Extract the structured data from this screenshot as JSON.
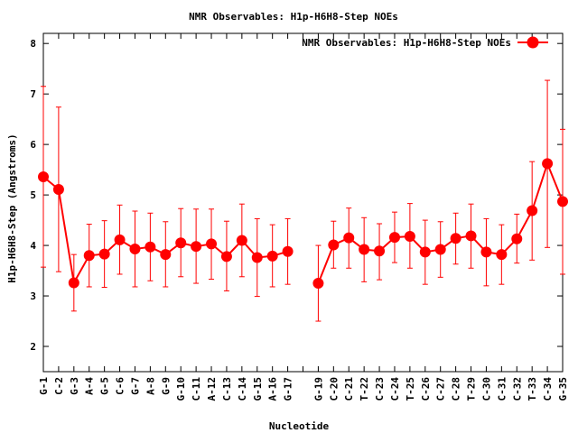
{
  "chart_data": {
    "type": "line",
    "title": "NMR Observables: H1p-H6H8-Step NOEs",
    "xlabel": "Nucleotide",
    "ylabel": "H1p-H6H8-Step (Angstroms)",
    "ylim": [
      1.5,
      8.2
    ],
    "yticks": [
      2,
      3,
      4,
      5,
      6,
      7,
      8
    ],
    "xlim": [
      1,
      35
    ],
    "legend_position": "top-right",
    "grid": false,
    "series": [
      {
        "name": "NMR Observables: H1p-H6H8-Step NOEs",
        "color": "#ff0000",
        "points": [
          {
            "x": 1,
            "label": "G-1",
            "y": 5.36,
            "low": 3.57,
            "high": 7.15
          },
          {
            "x": 2,
            "label": "C-2",
            "y": 5.11,
            "low": 3.48,
            "high": 6.74
          },
          {
            "x": 3,
            "label": "G-3",
            "y": 3.26,
            "low": 2.7,
            "high": 3.82
          },
          {
            "x": 4,
            "label": "A-4",
            "y": 3.8,
            "low": 3.18,
            "high": 4.42
          },
          {
            "x": 5,
            "label": "G-5",
            "y": 3.83,
            "low": 3.17,
            "high": 4.49
          },
          {
            "x": 6,
            "label": "C-6",
            "y": 4.11,
            "low": 3.43,
            "high": 4.8
          },
          {
            "x": 7,
            "label": "G-7",
            "y": 3.93,
            "low": 3.18,
            "high": 4.68
          },
          {
            "x": 8,
            "label": "A-8",
            "y": 3.97,
            "low": 3.3,
            "high": 4.64
          },
          {
            "x": 9,
            "label": "G-9",
            "y": 3.82,
            "low": 3.18,
            "high": 4.47
          },
          {
            "x": 10,
            "label": "G-10",
            "y": 4.05,
            "low": 3.38,
            "high": 4.73
          },
          {
            "x": 11,
            "label": "C-11",
            "y": 3.98,
            "low": 3.25,
            "high": 4.72
          },
          {
            "x": 12,
            "label": "A-12",
            "y": 4.03,
            "low": 3.33,
            "high": 4.72
          },
          {
            "x": 13,
            "label": "C-13",
            "y": 3.78,
            "low": 3.1,
            "high": 4.48
          },
          {
            "x": 14,
            "label": "C-14",
            "y": 4.1,
            "low": 3.38,
            "high": 4.82
          },
          {
            "x": 15,
            "label": "G-15",
            "y": 3.76,
            "low": 2.99,
            "high": 4.53
          },
          {
            "x": 16,
            "label": "A-16",
            "y": 3.79,
            "low": 3.18,
            "high": 4.41
          },
          {
            "x": 17,
            "label": "G-17",
            "y": 3.88,
            "low": 3.23,
            "high": 4.53
          },
          {
            "x": 18,
            "label": "",
            "y": null,
            "low": null,
            "high": null
          },
          {
            "x": 19,
            "label": "G-19",
            "y": 3.25,
            "low": 2.5,
            "high": 4.0
          },
          {
            "x": 20,
            "label": "C-20",
            "y": 4.01,
            "low": 3.55,
            "high": 4.48
          },
          {
            "x": 21,
            "label": "C-21",
            "y": 4.15,
            "low": 3.55,
            "high": 4.74
          },
          {
            "x": 22,
            "label": "T-22",
            "y": 3.92,
            "low": 3.28,
            "high": 4.55
          },
          {
            "x": 23,
            "label": "C-23",
            "y": 3.89,
            "low": 3.32,
            "high": 4.43
          },
          {
            "x": 24,
            "label": "C-24",
            "y": 4.16,
            "low": 3.66,
            "high": 4.66
          },
          {
            "x": 25,
            "label": "T-25",
            "y": 4.18,
            "low": 3.55,
            "high": 4.83
          },
          {
            "x": 26,
            "label": "C-26",
            "y": 3.87,
            "low": 3.23,
            "high": 4.5
          },
          {
            "x": 27,
            "label": "C-27",
            "y": 3.92,
            "low": 3.37,
            "high": 4.47
          },
          {
            "x": 28,
            "label": "C-28",
            "y": 4.14,
            "low": 3.63,
            "high": 4.64
          },
          {
            "x": 29,
            "label": "T-29",
            "y": 4.19,
            "low": 3.55,
            "high": 4.82
          },
          {
            "x": 30,
            "label": "C-30",
            "y": 3.87,
            "low": 3.2,
            "high": 4.53
          },
          {
            "x": 31,
            "label": "C-31",
            "y": 3.82,
            "low": 3.23,
            "high": 4.41
          },
          {
            "x": 32,
            "label": "C-32",
            "y": 4.13,
            "low": 3.65,
            "high": 4.62
          },
          {
            "x": 33,
            "label": "T-33",
            "y": 4.69,
            "low": 3.71,
            "high": 5.66
          },
          {
            "x": 34,
            "label": "C-34",
            "y": 5.62,
            "low": 3.96,
            "high": 7.27
          },
          {
            "x": 35,
            "label": "G-35",
            "y": 4.87,
            "low": 3.43,
            "high": 6.3
          }
        ]
      }
    ]
  }
}
